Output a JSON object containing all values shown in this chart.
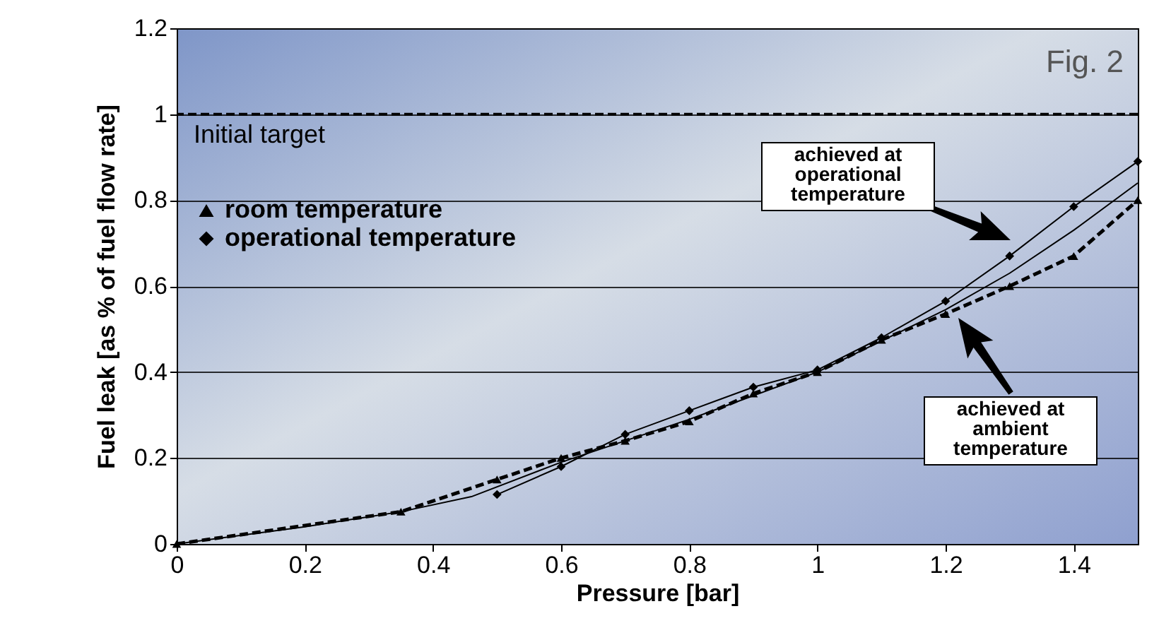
{
  "chart_data": {
    "type": "line",
    "xlabel": "Pressure [bar]",
    "ylabel": "Fuel leak [as % of fuel flow rate]",
    "xlim": [
      0,
      1.5
    ],
    "xticks": [
      0,
      0.2,
      0.4,
      0.6,
      0.8,
      1,
      1.2,
      1.4
    ],
    "ylim": [
      0,
      1.2
    ],
    "yticks": [
      0,
      0.2,
      0.4,
      0.6,
      0.8,
      1,
      1.2
    ],
    "grid": "y",
    "legend": "top left",
    "ref_lines": [
      {
        "axis": "y",
        "value": 1,
        "label": "Initial target",
        "line_style": "dashed",
        "color": "#000000"
      }
    ],
    "annotations": [
      "Fig. 2",
      "achieved at operational temperature",
      "achieved at ambient temperature"
    ],
    "series": [
      {
        "name": "room temperature",
        "color": "#000000",
        "marker": "triangle",
        "line_style": "dashed",
        "x": [
          0,
          0.35,
          0.5,
          0.6,
          0.7,
          0.8,
          0.9,
          1,
          1.1,
          1.2,
          1.3,
          1.4,
          1.5
        ],
        "values": [
          0,
          0.075,
          0.15,
          0.2,
          0.24,
          0.285,
          0.35,
          0.4,
          0.475,
          0.535,
          0.6,
          0.67,
          0.8
        ]
      },
      {
        "name": "operational temperature",
        "color": "#000000",
        "marker": "diamond",
        "line_style": "solid",
        "x": [
          0.5,
          0.6,
          0.7,
          0.8,
          0.9,
          1,
          1.1,
          1.2,
          1.3,
          1.4,
          1.5
        ],
        "values": [
          0.115,
          0.18,
          0.255,
          0.31,
          0.365,
          0.405,
          0.48,
          0.565,
          0.67,
          0.785,
          0.89
        ]
      },
      {
        "type": "line",
        "color": "#000000",
        "marker": "none",
        "line_style": "solid",
        "x": [
          0,
          0.2,
          0.35,
          0.46,
          0.6,
          0.8,
          1,
          1.2,
          1.3,
          1.4,
          1.5
        ],
        "values": [
          0,
          0.04,
          0.075,
          0.11,
          0.19,
          0.29,
          0.4,
          0.545,
          0.63,
          0.73,
          0.84
        ]
      }
    ]
  }
}
